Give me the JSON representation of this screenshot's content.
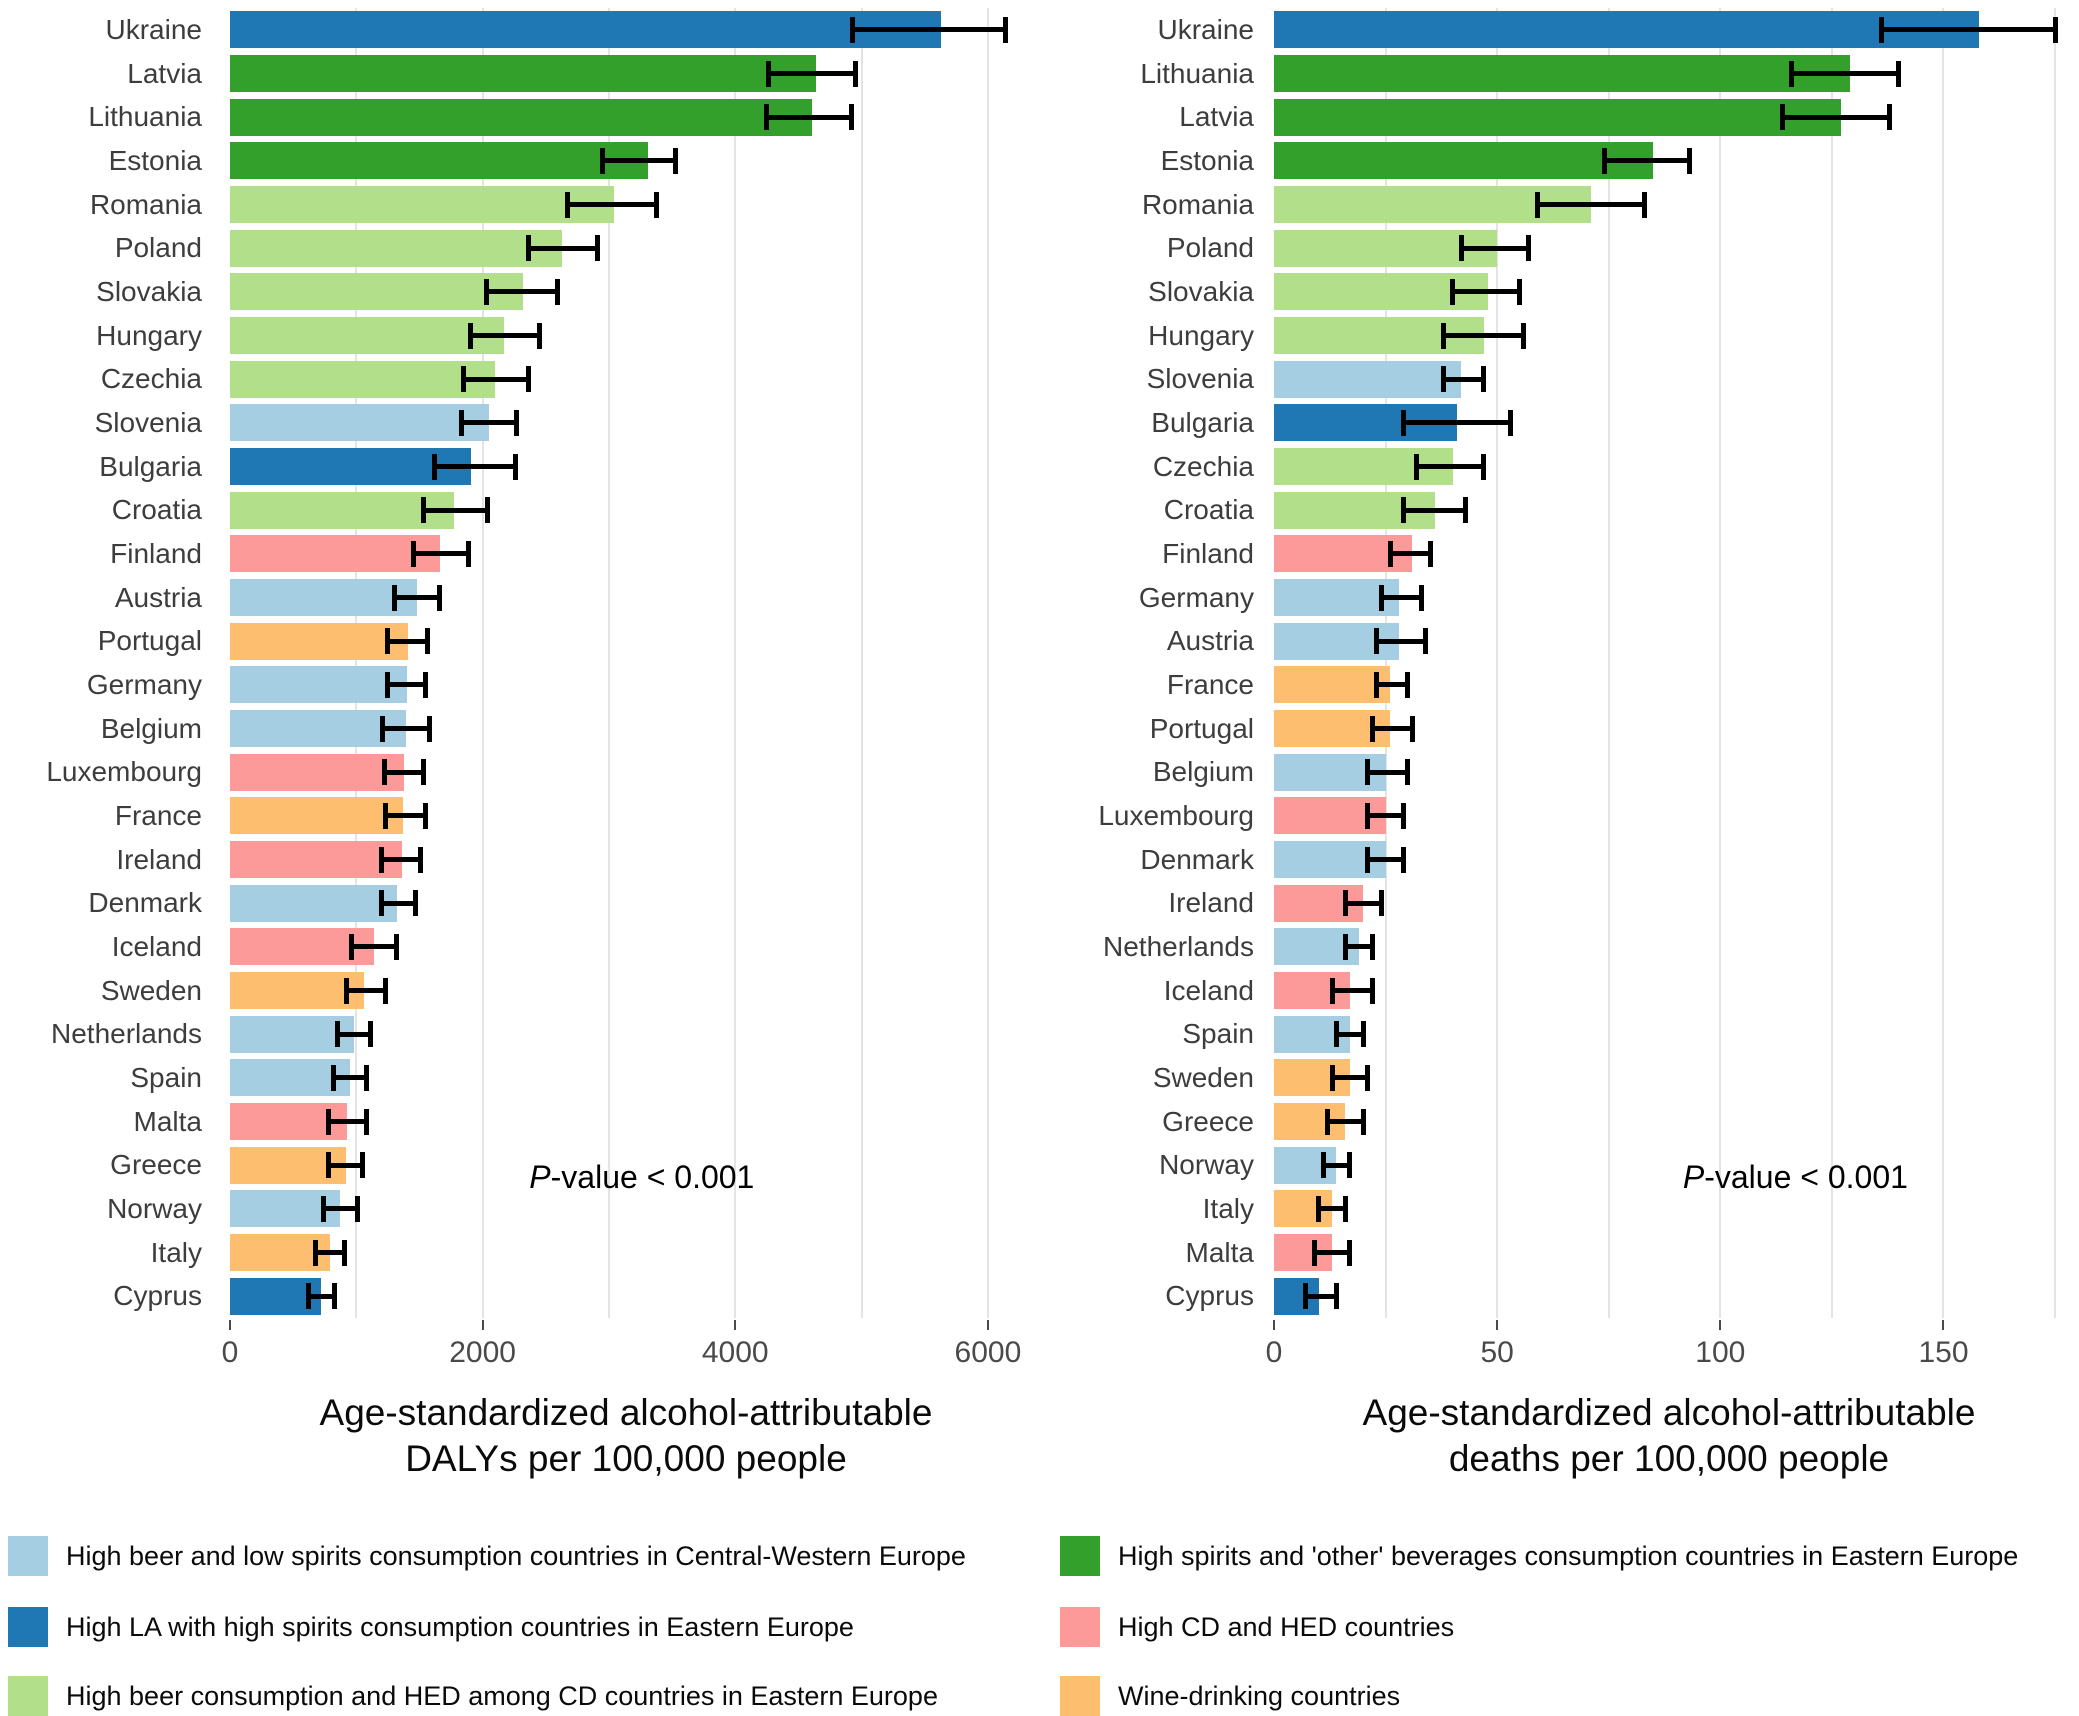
{
  "colors": {
    "groups": {
      "lb": "#a6cee3",
      "db": "#1f78b4",
      "lg": "#b2df8a",
      "dg": "#33a02c",
      "pk": "#fb9a99",
      "or": "#fdbf6f"
    },
    "gridline": "#e4e4e4",
    "error_bar": "#000000"
  },
  "chart_data": [
    {
      "type": "bar",
      "orientation": "horizontal",
      "xlabel_lines": [
        "Age-standardized alcohol-attributable",
        "DALYs per 100,000 people"
      ],
      "xlim": [
        0,
        6270
      ],
      "major_ticks": [
        0,
        2000,
        4000,
        6000
      ],
      "minor_step": 1000,
      "grid_max": 6000,
      "grid": true,
      "annotation": {
        "italic": "P",
        "text": "-value < 0.001",
        "x_pct": 52
      },
      "bars": [
        {
          "country": "Ukraine",
          "value": 5630,
          "ci_low": 4930,
          "ci_high": 6140,
          "group": "db"
        },
        {
          "country": "Latvia",
          "value": 4640,
          "ci_low": 4260,
          "ci_high": 4950,
          "group": "dg"
        },
        {
          "country": "Lithuania",
          "value": 4610,
          "ci_low": 4250,
          "ci_high": 4920,
          "group": "dg"
        },
        {
          "country": "Estonia",
          "value": 3310,
          "ci_low": 2950,
          "ci_high": 3530,
          "group": "dg"
        },
        {
          "country": "Romania",
          "value": 3040,
          "ci_low": 2670,
          "ci_high": 3380,
          "group": "lg"
        },
        {
          "country": "Poland",
          "value": 2630,
          "ci_low": 2360,
          "ci_high": 2910,
          "group": "lg"
        },
        {
          "country": "Slovakia",
          "value": 2320,
          "ci_low": 2030,
          "ci_high": 2590,
          "group": "lg"
        },
        {
          "country": "Hungary",
          "value": 2170,
          "ci_low": 1900,
          "ci_high": 2450,
          "group": "lg"
        },
        {
          "country": "Czechia",
          "value": 2100,
          "ci_low": 1850,
          "ci_high": 2360,
          "group": "lg"
        },
        {
          "country": "Slovenia",
          "value": 2050,
          "ci_low": 1830,
          "ci_high": 2270,
          "group": "lb"
        },
        {
          "country": "Bulgaria",
          "value": 1910,
          "ci_low": 1620,
          "ci_high": 2260,
          "group": "db"
        },
        {
          "country": "Croatia",
          "value": 1770,
          "ci_low": 1530,
          "ci_high": 2040,
          "group": "lg"
        },
        {
          "country": "Finland",
          "value": 1660,
          "ci_low": 1450,
          "ci_high": 1890,
          "group": "pk"
        },
        {
          "country": "Austria",
          "value": 1480,
          "ci_low": 1300,
          "ci_high": 1660,
          "group": "lb"
        },
        {
          "country": "Portugal",
          "value": 1410,
          "ci_low": 1250,
          "ci_high": 1560,
          "group": "or"
        },
        {
          "country": "Germany",
          "value": 1400,
          "ci_low": 1250,
          "ci_high": 1550,
          "group": "lb"
        },
        {
          "country": "Belgium",
          "value": 1390,
          "ci_low": 1210,
          "ci_high": 1580,
          "group": "lb"
        },
        {
          "country": "Luxembourg",
          "value": 1380,
          "ci_low": 1220,
          "ci_high": 1530,
          "group": "pk"
        },
        {
          "country": "France",
          "value": 1370,
          "ci_low": 1230,
          "ci_high": 1550,
          "group": "or"
        },
        {
          "country": "Ireland",
          "value": 1360,
          "ci_low": 1200,
          "ci_high": 1510,
          "group": "pk"
        },
        {
          "country": "Denmark",
          "value": 1320,
          "ci_low": 1200,
          "ci_high": 1470,
          "group": "lb"
        },
        {
          "country": "Iceland",
          "value": 1140,
          "ci_low": 960,
          "ci_high": 1320,
          "group": "pk"
        },
        {
          "country": "Sweden",
          "value": 1060,
          "ci_low": 920,
          "ci_high": 1230,
          "group": "or"
        },
        {
          "country": "Netherlands",
          "value": 980,
          "ci_low": 850,
          "ci_high": 1110,
          "group": "lb"
        },
        {
          "country": "Spain",
          "value": 950,
          "ci_low": 820,
          "ci_high": 1080,
          "group": "lb"
        },
        {
          "country": "Malta",
          "value": 930,
          "ci_low": 780,
          "ci_high": 1080,
          "group": "pk"
        },
        {
          "country": "Greece",
          "value": 920,
          "ci_low": 780,
          "ci_high": 1050,
          "group": "or"
        },
        {
          "country": "Norway",
          "value": 870,
          "ci_low": 740,
          "ci_high": 1010,
          "group": "lb"
        },
        {
          "country": "Italy",
          "value": 790,
          "ci_low": 680,
          "ci_high": 910,
          "group": "or"
        },
        {
          "country": "Cyprus",
          "value": 720,
          "ci_low": 620,
          "ci_high": 830,
          "group": "db"
        }
      ]
    },
    {
      "type": "bar",
      "orientation": "horizontal",
      "xlabel_lines": [
        "Age-standardized alcohol-attributable",
        "deaths per 100,000 people"
      ],
      "xlim": [
        0,
        177
      ],
      "major_ticks": [
        0,
        50,
        100,
        150
      ],
      "minor_step": 25,
      "grid_max": 175,
      "grid": true,
      "annotation": {
        "italic": "P",
        "text": "-value < 0.001",
        "x_pct": 66
      },
      "bars": [
        {
          "country": "Ukraine",
          "value": 158,
          "ci_low": 136,
          "ci_high": 175,
          "group": "db"
        },
        {
          "country": "Lithuania",
          "value": 129,
          "ci_low": 116,
          "ci_high": 140,
          "group": "dg"
        },
        {
          "country": "Latvia",
          "value": 127,
          "ci_low": 114,
          "ci_high": 138,
          "group": "dg"
        },
        {
          "country": "Estonia",
          "value": 85,
          "ci_low": 74,
          "ci_high": 93,
          "group": "dg"
        },
        {
          "country": "Romania",
          "value": 71,
          "ci_low": 59,
          "ci_high": 83,
          "group": "lg"
        },
        {
          "country": "Poland",
          "value": 50,
          "ci_low": 42,
          "ci_high": 57,
          "group": "lg"
        },
        {
          "country": "Slovakia",
          "value": 48,
          "ci_low": 40,
          "ci_high": 55,
          "group": "lg"
        },
        {
          "country": "Hungary",
          "value": 47,
          "ci_low": 38,
          "ci_high": 56,
          "group": "lg"
        },
        {
          "country": "Slovenia",
          "value": 42,
          "ci_low": 38,
          "ci_high": 47,
          "group": "lb"
        },
        {
          "country": "Bulgaria",
          "value": 41,
          "ci_low": 29,
          "ci_high": 53,
          "group": "db"
        },
        {
          "country": "Czechia",
          "value": 40,
          "ci_low": 32,
          "ci_high": 47,
          "group": "lg"
        },
        {
          "country": "Croatia",
          "value": 36,
          "ci_low": 29,
          "ci_high": 43,
          "group": "lg"
        },
        {
          "country": "Finland",
          "value": 31,
          "ci_low": 26,
          "ci_high": 35,
          "group": "pk"
        },
        {
          "country": "Germany",
          "value": 28,
          "ci_low": 24,
          "ci_high": 33,
          "group": "lb"
        },
        {
          "country": "Austria",
          "value": 28,
          "ci_low": 23,
          "ci_high": 34,
          "group": "lb"
        },
        {
          "country": "France",
          "value": 26,
          "ci_low": 23,
          "ci_high": 30,
          "group": "or"
        },
        {
          "country": "Portugal",
          "value": 26,
          "ci_low": 22,
          "ci_high": 31,
          "group": "or"
        },
        {
          "country": "Belgium",
          "value": 25,
          "ci_low": 21,
          "ci_high": 30,
          "group": "lb"
        },
        {
          "country": "Luxembourg",
          "value": 25,
          "ci_low": 21,
          "ci_high": 29,
          "group": "pk"
        },
        {
          "country": "Denmark",
          "value": 25,
          "ci_low": 21,
          "ci_high": 29,
          "group": "lb"
        },
        {
          "country": "Ireland",
          "value": 20,
          "ci_low": 16,
          "ci_high": 24,
          "group": "pk"
        },
        {
          "country": "Netherlands",
          "value": 19,
          "ci_low": 16,
          "ci_high": 22,
          "group": "lb"
        },
        {
          "country": "Iceland",
          "value": 17,
          "ci_low": 13,
          "ci_high": 22,
          "group": "pk"
        },
        {
          "country": "Spain",
          "value": 17,
          "ci_low": 14,
          "ci_high": 20,
          "group": "lb"
        },
        {
          "country": "Sweden",
          "value": 17,
          "ci_low": 13,
          "ci_high": 21,
          "group": "or"
        },
        {
          "country": "Greece",
          "value": 16,
          "ci_low": 12,
          "ci_high": 20,
          "group": "or"
        },
        {
          "country": "Norway",
          "value": 14,
          "ci_low": 11,
          "ci_high": 17,
          "group": "lb"
        },
        {
          "country": "Italy",
          "value": 13,
          "ci_low": 10,
          "ci_high": 16,
          "group": "or"
        },
        {
          "country": "Malta",
          "value": 13,
          "ci_low": 9,
          "ci_high": 17,
          "group": "pk"
        },
        {
          "country": "Cyprus",
          "value": 10,
          "ci_low": 7,
          "ci_high": 14,
          "group": "db"
        }
      ]
    }
  ],
  "legend": {
    "position": "bottom",
    "columns": [
      [
        {
          "label": "High beer and low spirits consumption countries in Central-Western Europe",
          "group": "lb"
        },
        {
          "label": "High LA with high spirits consumption countries in Eastern Europe",
          "group": "db"
        },
        {
          "label": "High beer consumption and HED among CD countries in Eastern Europe",
          "group": "lg"
        }
      ],
      [
        {
          "label": "High spirits and 'other' beverages consumption countries in Eastern Europe",
          "group": "dg"
        },
        {
          "label": "High CD and HED countries",
          "group": "pk"
        },
        {
          "label": "Wine-drinking countries",
          "group": "or"
        }
      ]
    ]
  }
}
